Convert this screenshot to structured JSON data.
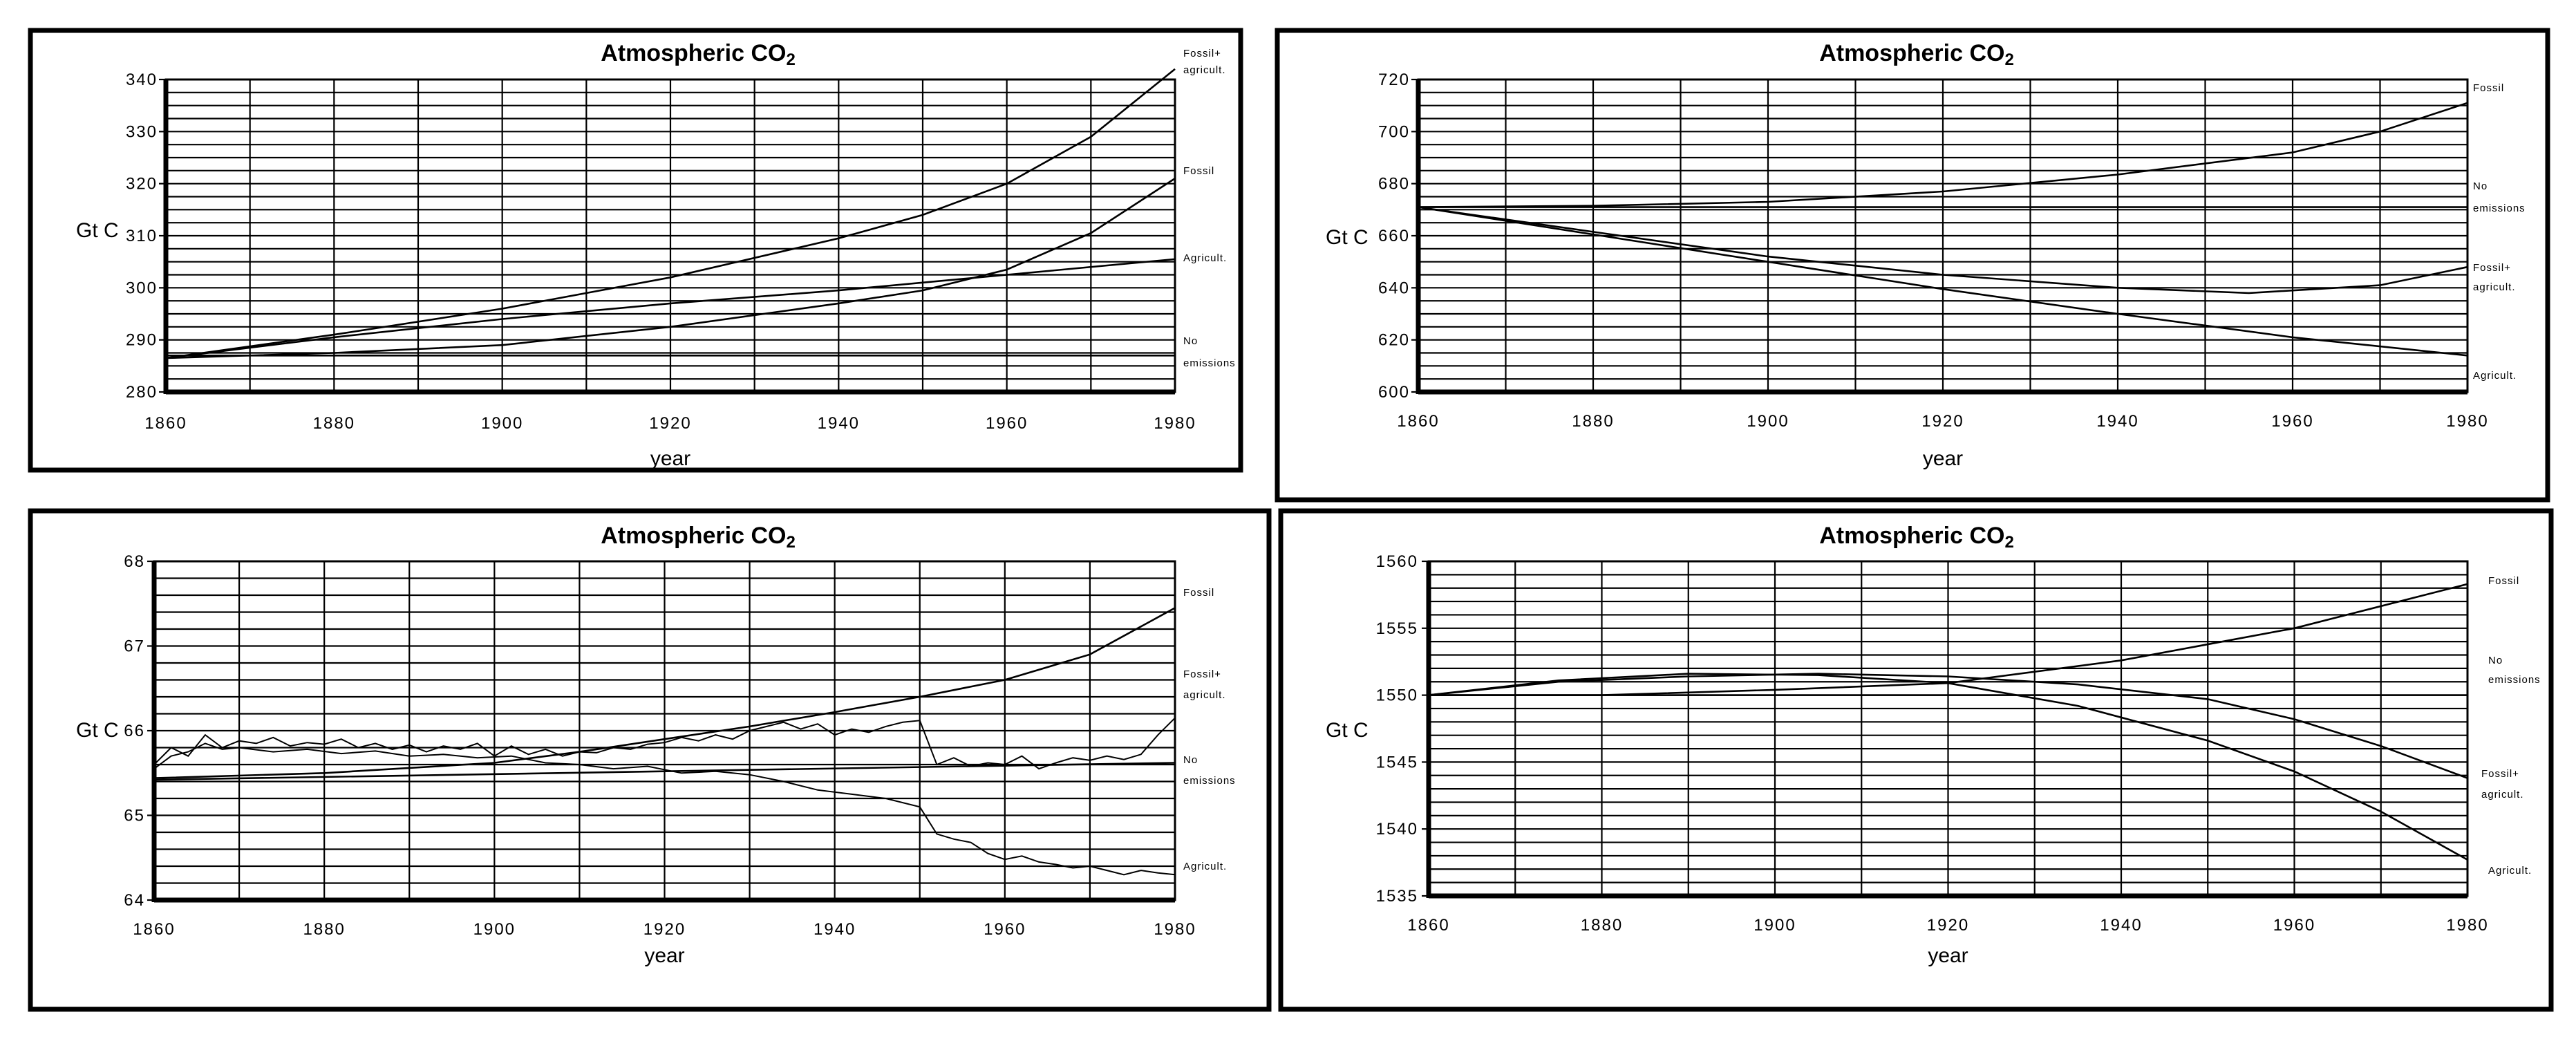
{
  "chart_data": [
    {
      "type": "line",
      "title": "Atmospheric CO",
      "title_sub": "2",
      "xlabel": "year",
      "ylabel": "Gt C",
      "xlim": [
        1860,
        1980
      ],
      "ylim": [
        280,
        340
      ],
      "x_ticks": [
        "1860",
        "1880",
        "1900",
        "1920",
        "1940",
        "1960",
        "1980"
      ],
      "y_ticks": [
        "280",
        "290",
        "300",
        "310",
        "320",
        "330",
        "340"
      ],
      "grid": true,
      "series": [
        {
          "name": "Fossil+ agricult.",
          "x": [
            1860,
            1880,
            1900,
            1920,
            1940,
            1950,
            1960,
            1970,
            1980
          ],
          "values": [
            286.5,
            291,
            296,
            302,
            309.5,
            314,
            320,
            329,
            342
          ]
        },
        {
          "name": "Fossil",
          "x": [
            1860,
            1880,
            1900,
            1920,
            1940,
            1950,
            1960,
            1970,
            1980
          ],
          "values": [
            286.5,
            287.5,
            289,
            292.5,
            297,
            299.5,
            303.5,
            310.5,
            321
          ]
        },
        {
          "name": "Agricult.",
          "x": [
            1860,
            1880,
            1900,
            1920,
            1940,
            1960,
            1980
          ],
          "values": [
            286.5,
            290.5,
            294,
            297,
            299.5,
            302.5,
            305.5
          ]
        },
        {
          "name": "No emissions",
          "x": [
            1860,
            1980
          ],
          "values": [
            287,
            287
          ]
        }
      ]
    },
    {
      "type": "line",
      "title": "Atmospheric CO",
      "title_sub": "2",
      "xlabel": "year",
      "ylabel": "Gt C",
      "xlim": [
        1860,
        1980
      ],
      "ylim": [
        600,
        720
      ],
      "x_ticks": [
        "1860",
        "1880",
        "1900",
        "1920",
        "1940",
        "1960",
        "1980"
      ],
      "y_ticks": [
        "600",
        "620",
        "640",
        "660",
        "680",
        "700",
        "720"
      ],
      "grid": true,
      "series": [
        {
          "name": "Fossil",
          "x": [
            1860,
            1880,
            1900,
            1920,
            1940,
            1960,
            1970,
            1980
          ],
          "values": [
            671,
            671.5,
            673,
            677,
            683.5,
            692,
            700,
            711
          ]
        },
        {
          "name": "No emissions",
          "x": [
            1860,
            1980
          ],
          "values": [
            671,
            671
          ]
        },
        {
          "name": "Fossil+ agricult.",
          "x": [
            1860,
            1880,
            1900,
            1920,
            1940,
            1955,
            1970,
            1980
          ],
          "values": [
            671,
            661.5,
            652,
            645,
            640,
            638,
            641,
            648
          ]
        },
        {
          "name": "Agricult.",
          "x": [
            1860,
            1880,
            1900,
            1920,
            1940,
            1960,
            1980
          ],
          "values": [
            671,
            660.5,
            650,
            639.5,
            630,
            621,
            614
          ]
        }
      ]
    },
    {
      "type": "line",
      "title": "Atmospheric CO",
      "title_sub": "2",
      "xlabel": "year",
      "ylabel": "Gt C",
      "xlim": [
        1860,
        1980
      ],
      "ylim": [
        64,
        68
      ],
      "x_ticks": [
        "1860",
        "1880",
        "1900",
        "1920",
        "1940",
        "1960",
        "1980"
      ],
      "y_ticks": [
        "64",
        "65",
        "66",
        "67",
        "68"
      ],
      "grid": true,
      "series": [
        {
          "name": "Fossil",
          "x": [
            1860,
            1880,
            1900,
            1910,
            1920,
            1930,
            1940,
            1950,
            1960,
            1970,
            1980
          ],
          "values": [
            65.44,
            65.5,
            65.62,
            65.75,
            65.9,
            66.05,
            66.22,
            66.4,
            66.6,
            66.9,
            67.45
          ]
        },
        {
          "name": "Fossil+ agricult.",
          "x": [
            1860,
            1862,
            1864,
            1866,
            1868,
            1870,
            1872,
            1874,
            1876,
            1878,
            1880,
            1882,
            1884,
            1886,
            1888,
            1890,
            1892,
            1894,
            1896,
            1898,
            1900,
            1902,
            1904,
            1906,
            1908,
            1910,
            1912,
            1914,
            1916,
            1918,
            1920,
            1922,
            1924,
            1926,
            1928,
            1930,
            1932,
            1934,
            1936,
            1938,
            1940,
            1942,
            1944,
            1946,
            1948,
            1950,
            1952,
            1954,
            1956,
            1958,
            1960,
            1962,
            1964,
            1966,
            1968,
            1970,
            1972,
            1974,
            1976,
            1978,
            1980
          ],
          "values": [
            65.6,
            65.8,
            65.7,
            65.95,
            65.8,
            65.88,
            65.85,
            65.92,
            65.82,
            65.86,
            65.84,
            65.9,
            65.8,
            65.85,
            65.78,
            65.83,
            65.75,
            65.82,
            65.78,
            65.85,
            65.7,
            65.82,
            65.72,
            65.78,
            65.7,
            65.75,
            65.74,
            65.8,
            65.78,
            65.84,
            65.86,
            65.92,
            65.88,
            65.95,
            65.9,
            66.0,
            66.05,
            66.1,
            66.02,
            66.08,
            65.95,
            66.02,
            65.98,
            66.05,
            66.1,
            66.12,
            65.6,
            65.68,
            65.58,
            65.62,
            65.6,
            65.7,
            65.55,
            65.62,
            65.68,
            65.65,
            65.7,
            65.66,
            65.72,
            65.95,
            66.15
          ]
        },
        {
          "name": "No emissions",
          "x": [
            1860,
            1980
          ],
          "values": [
            65.42,
            65.62
          ]
        },
        {
          "name": "Agricult.",
          "x": [
            1860,
            1862,
            1864,
            1866,
            1868,
            1870,
            1874,
            1878,
            1882,
            1886,
            1890,
            1894,
            1898,
            1902,
            1906,
            1910,
            1914,
            1918,
            1922,
            1926,
            1930,
            1934,
            1938,
            1942,
            1946,
            1950,
            1952,
            1954,
            1956,
            1958,
            1960,
            1962,
            1964,
            1966,
            1968,
            1970,
            1972,
            1974,
            1976,
            1978,
            1980
          ],
          "values": [
            65.55,
            65.7,
            65.75,
            65.85,
            65.78,
            65.8,
            65.75,
            65.78,
            65.73,
            65.76,
            65.7,
            65.72,
            65.68,
            65.7,
            65.62,
            65.6,
            65.55,
            65.58,
            65.5,
            65.52,
            65.48,
            65.4,
            65.3,
            65.25,
            65.2,
            65.1,
            64.78,
            64.72,
            64.68,
            64.55,
            64.48,
            64.52,
            64.45,
            64.42,
            64.38,
            64.4,
            64.35,
            64.3,
            64.35,
            64.32,
            64.3
          ]
        }
      ]
    },
    {
      "type": "line",
      "title": "Atmospheric CO",
      "title_sub": "2",
      "xlabel": "year",
      "ylabel": "Gt C",
      "xlim": [
        1860,
        1980
      ],
      "ylim": [
        1535,
        1560
      ],
      "x_ticks": [
        "1860",
        "1880",
        "1900",
        "1920",
        "1940",
        "1960",
        "1980"
      ],
      "y_ticks": [
        "1535",
        "1540",
        "1545",
        "1550",
        "1555",
        "1560"
      ],
      "grid": true,
      "series": [
        {
          "name": "Fossil",
          "x": [
            1860,
            1880,
            1900,
            1920,
            1940,
            1960,
            1980
          ],
          "values": [
            1550,
            1550,
            1550.4,
            1550.9,
            1552.6,
            1555,
            1558.3
          ]
        },
        {
          "name": "No emissions",
          "x": [
            1860,
            1980
          ],
          "values": [
            1550,
            1550
          ]
        },
        {
          "name": "Fossil+ agricult.",
          "x": [
            1860,
            1875,
            1890,
            1905,
            1920,
            1935,
            1950,
            1960,
            1970,
            1980
          ],
          "values": [
            1550,
            1551,
            1551.4,
            1551.6,
            1551.4,
            1550.8,
            1549.7,
            1548.2,
            1546.2,
            1543.8
          ]
        },
        {
          "name": "Agricult.",
          "x": [
            1860,
            1875,
            1890,
            1905,
            1920,
            1935,
            1950,
            1960,
            1970,
            1980
          ],
          "values": [
            1550,
            1551.1,
            1551.6,
            1551.5,
            1550.9,
            1549.2,
            1546.6,
            1544.3,
            1541.3,
            1537.7
          ]
        }
      ]
    }
  ]
}
